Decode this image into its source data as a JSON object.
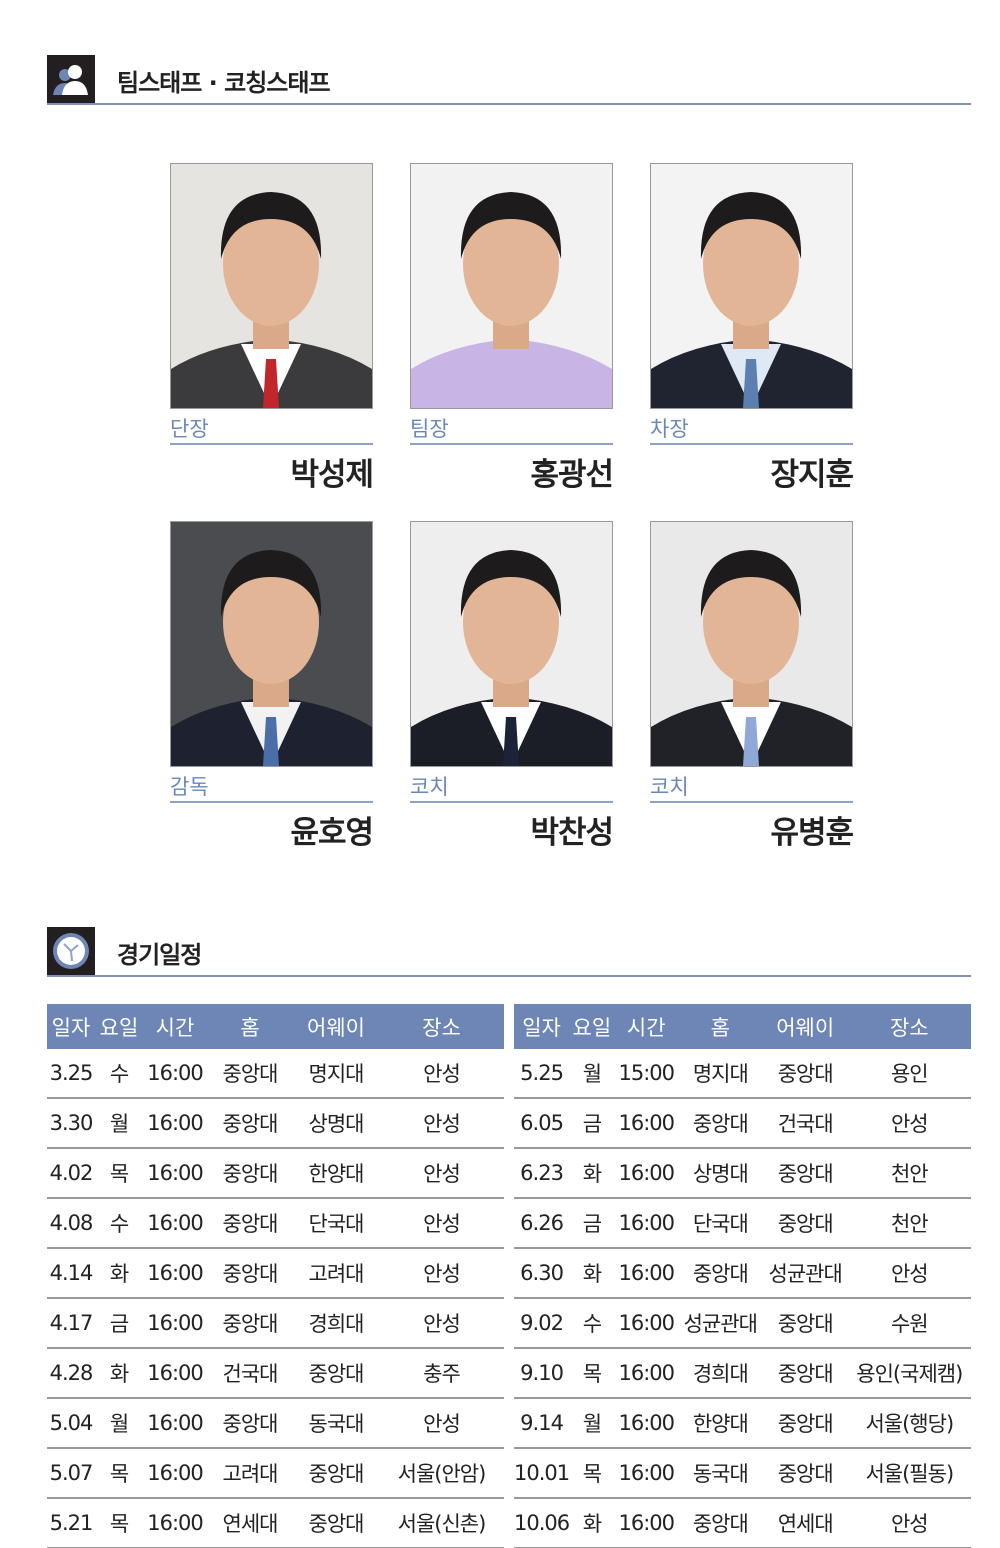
{
  "staff_section": {
    "title": "팀스태프 · 코칭스태프",
    "icon": "people-icon"
  },
  "staff": [
    {
      "role": "단장",
      "name": "박성제",
      "bg": "#e6e4e0",
      "suit": "#3b3b3d",
      "shirt": "#ffffff",
      "tie": "#c0262b"
    },
    {
      "role": "팀장",
      "name": "홍광선",
      "bg": "#f2f2f2",
      "suit": "#c9b4e6",
      "shirt": "#c9b4e6",
      "tie": "#c9b4e6"
    },
    {
      "role": "차장",
      "name": "장지훈",
      "bg": "#f3f3f3",
      "suit": "#1f2430",
      "shirt": "#dfe8f5",
      "tie": "#5b7fb0"
    },
    {
      "role": "감독",
      "name": "윤호영",
      "bg": "#4a4c50",
      "suit": "#1e2230",
      "shirt": "#f2f2f2",
      "tie": "#4a6ea8"
    },
    {
      "role": "코치",
      "name": "박찬성",
      "bg": "#eeeeee",
      "suit": "#1b1e26",
      "shirt": "#ffffff",
      "tie": "#1c2338"
    },
    {
      "role": "코치",
      "name": "유병훈",
      "bg": "#e9e9e9",
      "suit": "#202228",
      "shirt": "#ffffff",
      "tie": "#8fa8d8"
    }
  ],
  "schedule_section": {
    "title": "경기일정",
    "icon": "clock-icon"
  },
  "schedule_headers": [
    "일자",
    "요일",
    "시간",
    "홈",
    "어웨이",
    "장소"
  ],
  "schedule_left": [
    [
      "3.25",
      "수",
      "16:00",
      "중앙대",
      "명지대",
      "안성"
    ],
    [
      "3.30",
      "월",
      "16:00",
      "중앙대",
      "상명대",
      "안성"
    ],
    [
      "4.02",
      "목",
      "16:00",
      "중앙대",
      "한양대",
      "안성"
    ],
    [
      "4.08",
      "수",
      "16:00",
      "중앙대",
      "단국대",
      "안성"
    ],
    [
      "4.14",
      "화",
      "16:00",
      "중앙대",
      "고려대",
      "안성"
    ],
    [
      "4.17",
      "금",
      "16:00",
      "중앙대",
      "경희대",
      "안성"
    ],
    [
      "4.28",
      "화",
      "16:00",
      "건국대",
      "중앙대",
      "충주"
    ],
    [
      "5.04",
      "월",
      "16:00",
      "중앙대",
      "동국대",
      "안성"
    ],
    [
      "5.07",
      "목",
      "16:00",
      "고려대",
      "중앙대",
      "서울(안암)"
    ],
    [
      "5.21",
      "목",
      "16:00",
      "연세대",
      "중앙대",
      "서울(신촌)"
    ]
  ],
  "schedule_right": [
    [
      "5.25",
      "월",
      "15:00",
      "명지대",
      "중앙대",
      "용인"
    ],
    [
      "6.05",
      "금",
      "16:00",
      "중앙대",
      "건국대",
      "안성"
    ],
    [
      "6.23",
      "화",
      "16:00",
      "상명대",
      "중앙대",
      "천안"
    ],
    [
      "6.26",
      "금",
      "16:00",
      "단국대",
      "중앙대",
      "천안"
    ],
    [
      "6.30",
      "화",
      "16:00",
      "중앙대",
      "성균관대",
      "안성"
    ],
    [
      "9.02",
      "수",
      "16:00",
      "성균관대",
      "중앙대",
      "수원"
    ],
    [
      "9.10",
      "목",
      "16:00",
      "경희대",
      "중앙대",
      "용인(국제캠)"
    ],
    [
      "9.14",
      "월",
      "16:00",
      "한양대",
      "중앙대",
      "서울(행당)"
    ],
    [
      "10.01",
      "목",
      "16:00",
      "동국대",
      "중앙대",
      "서울(필동)"
    ],
    [
      "10.06",
      "화",
      "16:00",
      "중앙대",
      "연세대",
      "안성"
    ]
  ],
  "colors": {
    "accent": "#6d86b6",
    "role": "#6a87bb"
  }
}
